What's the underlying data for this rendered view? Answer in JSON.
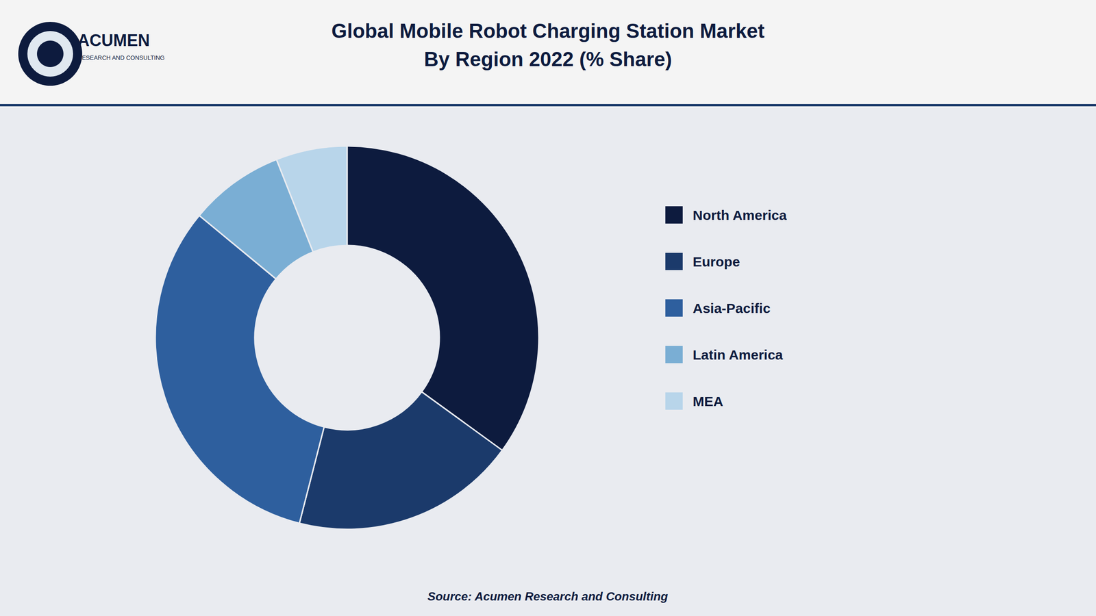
{
  "chart_data": {
    "type": "donut",
    "title": "Global Mobile Robot Charging Station Market",
    "subtitle": "By Region 2022 (% Share)",
    "categories": [
      "North America",
      "Europe",
      "Asia-Pacific",
      "Latin America",
      "MEA"
    ],
    "values": [
      35,
      19,
      32,
      8,
      6
    ],
    "colors": [
      "#0d1b3e",
      "#1b3a6b",
      "#2e5f9e",
      "#7aaed4",
      "#b8d5ea"
    ],
    "legend": "right",
    "annotations": [
      "ACUMEN",
      "RESEARCH AND CONSULTING",
      "Source: Acumen Research and Consulting"
    ]
  }
}
